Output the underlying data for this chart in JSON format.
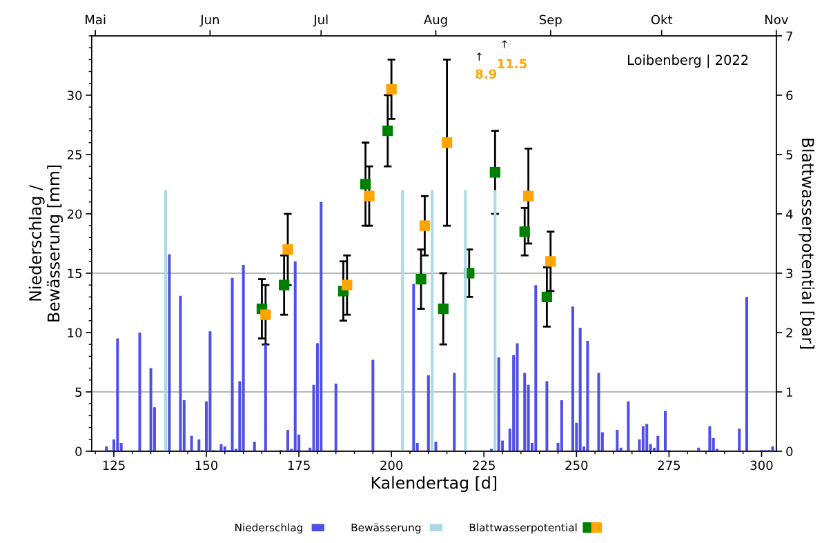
{
  "chart_data": {
    "type": "bar",
    "xlabel": "Kalendertag [d]",
    "ylabel": "Niederschlag /\nBewässerung [mm]",
    "y2label": "Blattwasserpotential [bar]",
    "xlim": [
      119,
      304
    ],
    "xticks": [
      {
        "value": 120,
        "label": null
      },
      125,
      {
        "value": 130,
        "label": null
      },
      {
        "value": 135,
        "label": null
      },
      {
        "value": 140,
        "label": null
      },
      {
        "value": 145,
        "label": null
      },
      150,
      {
        "value": 155,
        "label": null
      },
      {
        "value": 160,
        "label": null
      },
      {
        "value": 165,
        "label": null
      },
      {
        "value": 170,
        "label": null
      },
      175,
      {
        "value": 180,
        "label": null
      },
      {
        "value": 185,
        "label": null
      },
      {
        "value": 190,
        "label": null
      },
      {
        "value": 195,
        "label": null
      },
      200,
      {
        "value": 205,
        "label": null
      },
      {
        "value": 210,
        "label": null
      },
      {
        "value": 215,
        "label": null
      },
      {
        "value": 220,
        "label": null
      },
      225,
      {
        "value": 230,
        "label": null
      },
      {
        "value": 235,
        "label": null
      },
      {
        "value": 240,
        "label": null
      },
      {
        "value": 245,
        "label": null
      },
      250,
      {
        "value": 255,
        "label": null
      },
      {
        "value": 260,
        "label": null
      },
      {
        "value": 265,
        "label": null
      },
      {
        "value": 270,
        "label": null
      },
      275,
      {
        "value": 280,
        "label": null
      },
      {
        "value": 285,
        "label": null
      },
      {
        "value": 290,
        "label": null
      },
      {
        "value": 295,
        "label": null
      },
      300
    ],
    "x2lim": [
      "2022-04-30",
      "2022-11-01"
    ],
    "x2ticks": [
      {
        "value": "2022-05-01",
        "label": "Mai"
      },
      {
        "value": "2022-06-01",
        "label": "Jun"
      },
      {
        "value": "2022-07-01",
        "label": "Jul"
      },
      {
        "value": "2022-08-01",
        "label": "Aug"
      },
      {
        "value": "2022-09-01",
        "label": "Sep"
      },
      {
        "value": "2022-10-01",
        "label": "Okt"
      },
      {
        "value": "2022-11-01",
        "label": "Nov"
      }
    ],
    "ylim": [
      0,
      35
    ],
    "yticks": [
      0,
      {
        "value": 1,
        "label": null
      },
      {
        "value": 2,
        "label": null
      },
      {
        "value": 3,
        "label": null
      },
      {
        "value": 4,
        "label": null
      },
      5,
      {
        "value": 6,
        "label": null
      },
      {
        "value": 7,
        "label": null
      },
      {
        "value": 8,
        "label": null
      },
      {
        "value": 9,
        "label": null
      },
      10,
      {
        "value": 11,
        "label": null
      },
      {
        "value": 12,
        "label": null
      },
      {
        "value": 13,
        "label": null
      },
      {
        "value": 14,
        "label": null
      },
      15,
      {
        "value": 16,
        "label": null
      },
      {
        "value": 17,
        "label": null
      },
      {
        "value": 18,
        "label": null
      },
      {
        "value": 19,
        "label": null
      },
      20,
      {
        "value": 21,
        "label": null
      },
      {
        "value": 22,
        "label": null
      },
      {
        "value": 23,
        "label": null
      },
      {
        "value": 24,
        "label": null
      },
      25,
      {
        "value": 26,
        "label": null
      },
      {
        "value": 27,
        "label": null
      },
      {
        "value": 28,
        "label": null
      },
      {
        "value": 29,
        "label": null
      },
      30,
      {
        "value": 31,
        "label": null
      },
      {
        "value": 32,
        "label": null
      },
      {
        "value": 33,
        "label": null
      },
      {
        "value": 34,
        "label": null
      },
      {
        "value": 35,
        "label": null
      }
    ],
    "y2lim": [
      0,
      7
    ],
    "y2ticks": [
      0,
      1,
      2,
      3,
      4,
      5,
      6,
      7
    ],
    "ref_lines": [
      {
        "axis": "y2",
        "value": 1,
        "color": "#a0a0a0"
      },
      {
        "axis": "y2",
        "value": 3,
        "color": "#a0a0a0"
      }
    ],
    "annotations": [
      "Loibenberg | 2022",
      "↑",
      "8.9",
      "↑",
      "11.5"
    ],
    "legend": "bottom",
    "grid": false,
    "series": [
      {
        "name": "Niederschlag",
        "color": "#5050e6",
        "x": [
          123,
          124,
          125,
          126,
          127,
          132,
          135,
          136,
          140,
          143,
          144,
          146,
          148,
          149,
          150,
          151,
          152,
          154,
          155,
          156,
          157,
          158,
          159,
          160,
          163,
          166,
          170,
          172,
          173,
          174,
          175,
          178,
          179,
          180,
          181,
          185,
          195,
          206,
          207,
          210,
          212,
          217,
          227,
          229,
          230,
          232,
          233,
          234,
          236,
          237,
          238,
          239,
          242,
          245,
          246,
          249,
          250,
          251,
          252,
          253,
          256,
          257,
          261,
          262,
          264,
          267,
          268,
          269,
          270,
          271,
          272,
          274,
          275,
          283,
          286,
          287,
          288,
          294,
          296,
          300,
          301,
          302,
          303
        ],
        "values": [
          0.4,
          0.1,
          1.0,
          9.5,
          0.7,
          10.0,
          7.0,
          3.7,
          16.6,
          13.1,
          4.3,
          1.3,
          1.0,
          0.1,
          4.2,
          10.1,
          0.1,
          0.6,
          0.4,
          0.1,
          14.6,
          0.2,
          5.9,
          15.7,
          0.8,
          9.0,
          0.1,
          1.8,
          0.2,
          16.0,
          1.4,
          0.3,
          5.6,
          9.1,
          21.0,
          5.7,
          7.7,
          14.1,
          0.7,
          6.4,
          0.8,
          6.6,
          0.2,
          7.9,
          0.9,
          1.9,
          8.1,
          9.1,
          6.6,
          5.6,
          0.7,
          14.0,
          5.9,
          0.7,
          4.3,
          12.2,
          2.4,
          10.4,
          0.4,
          9.3,
          6.6,
          1.6,
          1.8,
          0.3,
          4.2,
          1.0,
          2.1,
          2.3,
          0.6,
          0.3,
          1.3,
          3.4,
          0.1,
          0.3,
          2.1,
          1.1,
          0.2,
          1.9,
          13.0,
          0.1,
          0.1,
          0.1,
          0.4
        ]
      },
      {
        "name": "Bewässerung",
        "color": "#add8e6",
        "x": [
          139,
          203,
          211,
          220,
          228
        ],
        "values": [
          22,
          22,
          22,
          22,
          22
        ]
      },
      {
        "name": "Blattwasserpotential",
        "type": "scatter",
        "axis": "y2",
        "marker": "square",
        "color": "#008000",
        "x": [
          165,
          171,
          187,
          193,
          199,
          208,
          214,
          221,
          228,
          236,
          242
        ],
        "values": [
          2.4,
          2.8,
          2.7,
          4.5,
          5.4,
          2.9,
          2.4,
          3.0,
          4.7,
          3.7,
          2.6
        ],
        "errors": [
          0.5,
          0.5,
          0.5,
          0.7,
          0.6,
          0.5,
          0.6,
          0.4,
          0.7,
          0.4,
          0.5
        ]
      },
      {
        "type": "scatter",
        "axis": "y2",
        "marker": "square",
        "color": "#ffa500",
        "x": [
          166,
          172,
          188,
          194,
          200,
          209,
          215,
          237,
          243
        ],
        "values": [
          2.3,
          3.4,
          2.8,
          4.3,
          6.1,
          3.8,
          5.2,
          4.3,
          3.2
        ],
        "errors": [
          0.5,
          0.6,
          0.5,
          0.5,
          0.5,
          0.5,
          1.4,
          0.8,
          0.5
        ]
      }
    ]
  }
}
